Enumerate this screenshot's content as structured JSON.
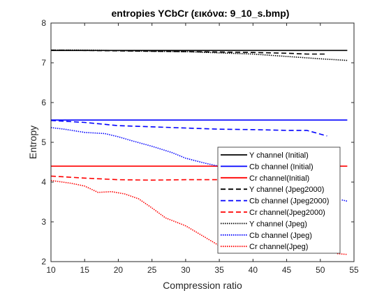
{
  "chart_data": {
    "type": "line",
    "title": "entropies YCbCr (εικόνα: 9_10_s.bmp)",
    "xlabel": "Compression ratio",
    "ylabel": "Entropy",
    "xlim": [
      10,
      55
    ],
    "ylim": [
      2,
      8
    ],
    "xticks": [
      10,
      15,
      20,
      25,
      30,
      35,
      40,
      45,
      50,
      55
    ],
    "yticks": [
      2,
      3,
      4,
      5,
      6,
      7,
      8
    ],
    "grid": false,
    "legend_position": "bottom-right",
    "series": [
      {
        "name": "Y channel (Initial)",
        "color": "#000000",
        "dash": "solid",
        "x": [
          10,
          54
        ],
        "y": [
          7.31,
          7.31
        ]
      },
      {
        "name": "Cb channel (Initial)",
        "color": "#0000ff",
        "dash": "solid",
        "x": [
          10,
          54
        ],
        "y": [
          5.56,
          5.56
        ]
      },
      {
        "name": "Cr channel(Initial)",
        "color": "#ff0000",
        "dash": "solid",
        "x": [
          10,
          54
        ],
        "y": [
          4.4,
          4.4
        ]
      },
      {
        "name": "Y channel (Jpeg2000)",
        "color": "#000000",
        "dash": "dashed",
        "x": [
          10,
          15,
          20,
          25,
          30,
          35,
          40,
          45,
          48,
          51
        ],
        "y": [
          7.32,
          7.31,
          7.3,
          7.29,
          7.28,
          7.27,
          7.26,
          7.24,
          7.22,
          7.22
        ]
      },
      {
        "name": "Cb channel (Jpeg2000)",
        "color": "#0000ff",
        "dash": "dashed",
        "x": [
          10,
          15,
          20,
          25,
          30,
          35,
          40,
          45,
          48,
          51
        ],
        "y": [
          5.55,
          5.5,
          5.42,
          5.39,
          5.36,
          5.33,
          5.32,
          5.3,
          5.3,
          5.16
        ]
      },
      {
        "name": "Cr channel(Jpeg2000)",
        "color": "#ff0000",
        "dash": "dashed",
        "x": [
          10,
          15,
          20,
          25,
          30,
          35,
          40,
          45,
          48,
          51
        ],
        "y": [
          4.15,
          4.1,
          4.06,
          4.05,
          4.06,
          4.06,
          4.06,
          4.06,
          4.07,
          4.07
        ]
      },
      {
        "name": "Y channel (Jpeg)",
        "color": "#000000",
        "dash": "dotted",
        "x": [
          10,
          15,
          19,
          22,
          25,
          30,
          35,
          40,
          45,
          50,
          54
        ],
        "y": [
          7.32,
          7.32,
          7.31,
          7.3,
          7.29,
          7.28,
          7.25,
          7.22,
          7.16,
          7.1,
          7.06
        ]
      },
      {
        "name": "Cb channel (Jpeg)",
        "color": "#0000ff",
        "dash": "dotted",
        "x": [
          10,
          12,
          15,
          18,
          20,
          22,
          25,
          28,
          30,
          33,
          36
        ],
        "y": [
          5.37,
          5.33,
          5.25,
          5.22,
          5.14,
          5.04,
          4.9,
          4.74,
          4.6,
          4.47,
          4.36
        ]
      },
      {
        "name": "Cr channel(Jpeg)",
        "color": "#ff0000",
        "dash": "dotted",
        "x": [
          10,
          13,
          15,
          17,
          19,
          21,
          23,
          25,
          27,
          30,
          33,
          35
        ],
        "y": [
          4.04,
          3.97,
          3.9,
          3.74,
          3.76,
          3.7,
          3.58,
          3.35,
          3.1,
          2.9,
          2.6,
          2.4
        ]
      }
    ],
    "visible_tails": [
      {
        "series": "Cb channel (Jpeg)",
        "x": [
          53.2,
          54
        ],
        "y": [
          3.55,
          3.52
        ]
      },
      {
        "series": "Cr channel(Jpeg)",
        "x": [
          52.5,
          54
        ],
        "y": [
          2.2,
          2.18
        ]
      }
    ]
  }
}
